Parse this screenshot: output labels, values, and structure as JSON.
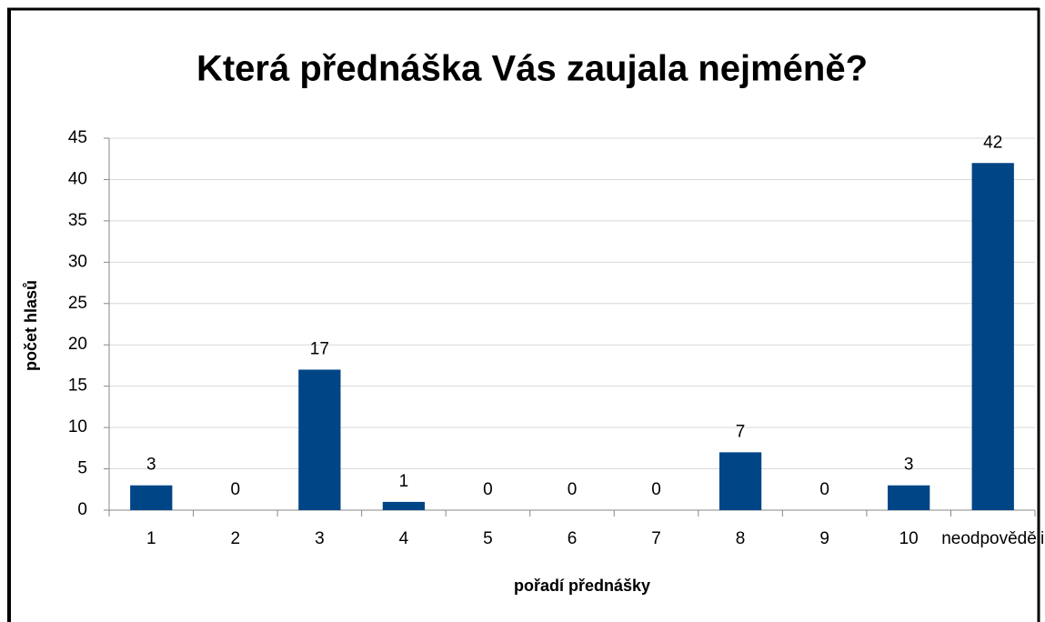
{
  "chart_data": {
    "type": "bar",
    "title": "Která přednáška Vás zaujala nejméně?",
    "x_label": "pořadí přednášky",
    "y_label": "počet hlasů",
    "categories": [
      "1",
      "2",
      "3",
      "4",
      "5",
      "6",
      "7",
      "8",
      "9",
      "10",
      "neodpověděli"
    ],
    "values": [
      3,
      0,
      17,
      1,
      0,
      0,
      0,
      7,
      0,
      3,
      42
    ],
    "color": "#004586",
    "ylim": [
      0,
      45
    ],
    "yticks": [
      0,
      5,
      10,
      15,
      20,
      25,
      30,
      35,
      40,
      45
    ],
    "grid": true
  }
}
